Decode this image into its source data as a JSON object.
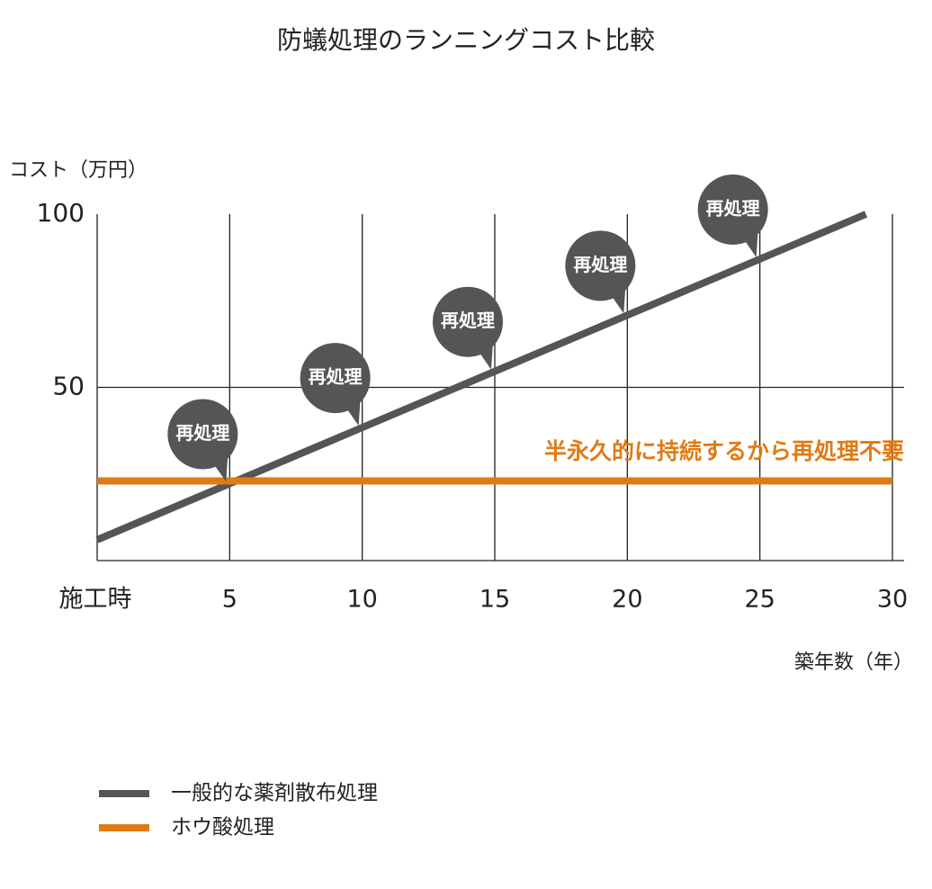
{
  "chart_data": {
    "type": "line",
    "title": "防蟻処理のランニングコスト比較",
    "y_label": "コスト（万円）",
    "x_label": "築年数（年）",
    "xlim": [
      0,
      30
    ],
    "ylim": [
      0,
      100
    ],
    "xticks": [
      {
        "value": 0,
        "label": "施工時"
      },
      5,
      10,
      15,
      20,
      25,
      30
    ],
    "yticks": [
      50,
      100
    ],
    "grid": true,
    "legend": "bottom-left",
    "series": [
      {
        "name": "一般的な薬剤散布処理",
        "color": "#555555",
        "x": [
          0,
          29
        ],
        "values": [
          6,
          100
        ]
      },
      {
        "name": "ホウ酸処理",
        "color": "#e07b14",
        "x": [
          0,
          30
        ],
        "values": [
          23,
          23
        ]
      }
    ],
    "annotations": [
      {
        "text": "再処理",
        "x": 5
      },
      {
        "text": "再処理",
        "x": 10
      },
      {
        "text": "再処理",
        "x": 15
      },
      {
        "text": "再処理",
        "x": 20
      },
      {
        "text": "再処理",
        "x": 25
      }
    ],
    "note": "半永久的に持続するから再処理不要"
  }
}
